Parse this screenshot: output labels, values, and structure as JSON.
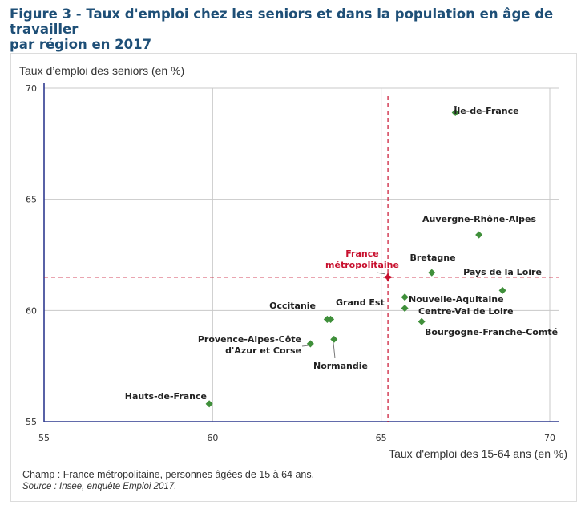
{
  "figure": {
    "title_line1": "Figure 3 - Taux d'emploi chez les seniors et dans la population en âge de travailler",
    "title_line2": "par région en 2017",
    "note": "Champ : France métropolitaine, personnes âgées de 15 à 64 ans.",
    "source": "Source : Insee, enquête Emploi 2017."
  },
  "colors": {
    "title": "#1e4f77",
    "axis": "#2f3a8f",
    "grid": "#c8c8c8",
    "points": "#3f8f3a",
    "reference": "#c8102e"
  },
  "chart_data": {
    "type": "scatter",
    "title": "Taux d'emploi chez les seniors et dans la population en âge de travailler par région en 2017",
    "xlabel": "Taux d'emploi des 15-64 ans (en %)",
    "ylabel": "Taux d’emploi des seniors (en %)",
    "xlim": [
      55,
      70
    ],
    "ylim": [
      55,
      70
    ],
    "xticks": [
      55,
      60,
      65,
      70
    ],
    "yticks": [
      55,
      60,
      65,
      70
    ],
    "grid": true,
    "points": [
      {
        "name": "Île-de-France",
        "x": 67.2,
        "y": 68.9
      },
      {
        "name": "Auvergne-Rhône-Alpes",
        "x": 67.9,
        "y": 63.4
      },
      {
        "name": "Bretagne",
        "x": 66.5,
        "y": 61.7
      },
      {
        "name": "Pays de la Loire",
        "x": 68.6,
        "y": 60.9
      },
      {
        "name": "Nouvelle-Aquitaine",
        "x": 65.7,
        "y": 60.6
      },
      {
        "name": "Centre-Val de Loire",
        "x": 65.7,
        "y": 60.1
      },
      {
        "name": "Bourgogne-Franche-Comté",
        "x": 66.2,
        "y": 59.5
      },
      {
        "name": "Occitanie",
        "x": 63.4,
        "y": 59.6
      },
      {
        "name": "Grand Est",
        "x": 63.5,
        "y": 59.6
      },
      {
        "name": "Provence-Alpes-Côte\nd'Azur et Corse",
        "x": 62.9,
        "y": 58.5
      },
      {
        "name": "Normandie",
        "x": 63.6,
        "y": 58.7
      },
      {
        "name": "Hauts-de-France",
        "x": 59.9,
        "y": 55.8
      }
    ],
    "reference": {
      "name": "France\nmétropolitaine",
      "x": 65.2,
      "y": 61.5
    }
  }
}
